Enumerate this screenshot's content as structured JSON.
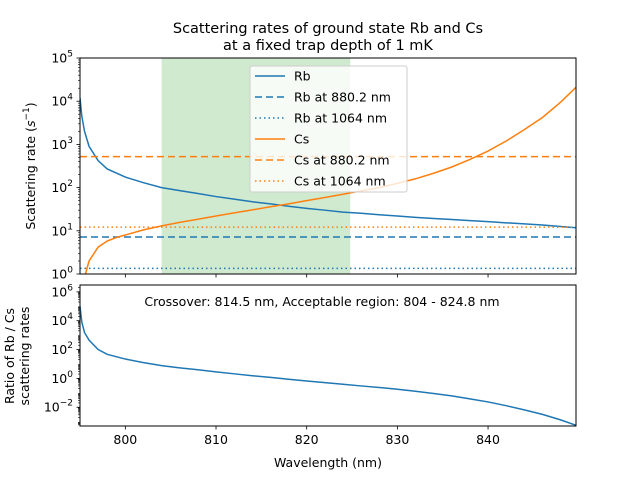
{
  "chart_data": [
    {
      "type": "line",
      "title": "Scattering rates of ground state Rb and Cs",
      "subtitle": "at a fixed trap depth of 1 mK",
      "xlabel": "",
      "ylabel": "Scattering rate (s$^{-1}$)",
      "ylabel_parts": {
        "main": "Scattering rate (",
        "sym": "s",
        "sup": "−1",
        "end": ")"
      },
      "xlim": [
        795,
        849.7
      ],
      "ylim": [
        1,
        100000
      ],
      "yscale": "log",
      "grid": false,
      "legend_position": "top-center",
      "shaded_region": {
        "x": [
          804,
          824.8
        ],
        "color": "#c8e6c8"
      },
      "xticks": [
        800,
        810,
        820,
        830,
        840
      ],
      "yticks": [
        {
          "value": 1,
          "base": "10",
          "exp": "0"
        },
        {
          "value": 10,
          "base": "10",
          "exp": "1"
        },
        {
          "value": 100,
          "base": "10",
          "exp": "2"
        },
        {
          "value": 1000,
          "base": "10",
          "exp": "3"
        },
        {
          "value": 10000,
          "base": "10",
          "exp": "4"
        },
        {
          "value": 100000,
          "base": "10",
          "exp": "5"
        }
      ],
      "series": [
        {
          "name": "Rb",
          "color": "#1f77b4",
          "style": "solid",
          "x": [
            795,
            795.2,
            795.5,
            796,
            797,
            798,
            800,
            802,
            804,
            806,
            808,
            810,
            812,
            814,
            816,
            818,
            820,
            822,
            824,
            826,
            828,
            830,
            832,
            834,
            836,
            838,
            840,
            842,
            844,
            846,
            848,
            849.7
          ],
          "y": [
            12000,
            4500,
            2000,
            900,
            420,
            270,
            175,
            130,
            100,
            85,
            73,
            62,
            54,
            47,
            42,
            37,
            33,
            30,
            27,
            25.5,
            23.5,
            22,
            20.5,
            19.3,
            18.2,
            17.2,
            16.3,
            15.3,
            14.5,
            13.6,
            12.6,
            11.8
          ]
        },
        {
          "name": "Rb at 880.2 nm",
          "color": "#1f77b4",
          "style": "dashed",
          "y": 7.2
        },
        {
          "name": "Rb at 1064 nm",
          "color": "#1f77b4",
          "style": "dotted",
          "y": 1.35
        },
        {
          "name": "Cs",
          "color": "#ff7f0e",
          "style": "solid",
          "x": [
            795.6,
            796,
            797,
            798,
            799,
            800,
            802,
            804,
            806,
            808,
            810,
            812,
            814,
            816,
            818,
            820,
            822,
            824,
            826,
            828,
            830,
            832,
            834,
            836,
            838,
            840,
            842,
            844,
            846,
            848,
            849.7
          ],
          "y": [
            1,
            2,
            4.2,
            5.8,
            7,
            8,
            10.5,
            13,
            15.7,
            18.5,
            22,
            26,
            30.5,
            36,
            42,
            50,
            59,
            70,
            84,
            100,
            125,
            160,
            215,
            300,
            450,
            700,
            1200,
            2200,
            4200,
            9500,
            21000
          ]
        },
        {
          "name": "Cs at 880.2 nm",
          "color": "#ff7f0e",
          "style": "dashed",
          "y": 520
        },
        {
          "name": "Cs at 1064 nm",
          "color": "#ff7f0e",
          "style": "dotted",
          "y": 12.2
        }
      ]
    },
    {
      "type": "line",
      "title": "",
      "xlabel": "Wavelength (nm)",
      "ylabel_line1": "Ratio of Rb / Cs",
      "ylabel_line2": "scattering rates",
      "xlim": [
        795,
        849.7
      ],
      "ylim": [
        0.0005,
        3000000
      ],
      "yscale": "log",
      "grid": false,
      "annotation": "Crossover: 814.5 nm, Acceptable region: 804 - 824.8 nm",
      "xticks": [
        800,
        810,
        820,
        830,
        840
      ],
      "yticks": [
        {
          "value": 0.01,
          "base": "10",
          "exp": "−2"
        },
        {
          "value": 1,
          "base": "10",
          "exp": "0"
        },
        {
          "value": 100,
          "base": "10",
          "exp": "2"
        },
        {
          "value": 10000,
          "base": "10",
          "exp": "4"
        },
        {
          "value": 1000000,
          "base": "10",
          "exp": "6"
        }
      ],
      "series": [
        {
          "name": "Rb / Cs",
          "color": "#1f77b4",
          "style": "solid",
          "x": [
            795,
            795.2,
            795.5,
            796,
            797,
            798,
            800,
            802,
            804,
            806,
            808,
            810,
            812,
            814,
            816,
            818,
            820,
            822,
            824,
            826,
            828,
            830,
            832,
            834,
            836,
            838,
            840,
            842,
            844,
            846,
            848,
            849.7
          ],
          "y": [
            100000,
            8000,
            1500,
            450,
            100,
            47,
            22,
            12.4,
            7.7,
            5.4,
            3.95,
            2.82,
            2.08,
            1.54,
            1.17,
            0.88,
            0.66,
            0.51,
            0.39,
            0.3,
            0.235,
            0.176,
            0.128,
            0.09,
            0.061,
            0.038,
            0.0233,
            0.0128,
            0.0066,
            0.0032,
            0.00133,
            0.00056
          ]
        }
      ]
    }
  ]
}
